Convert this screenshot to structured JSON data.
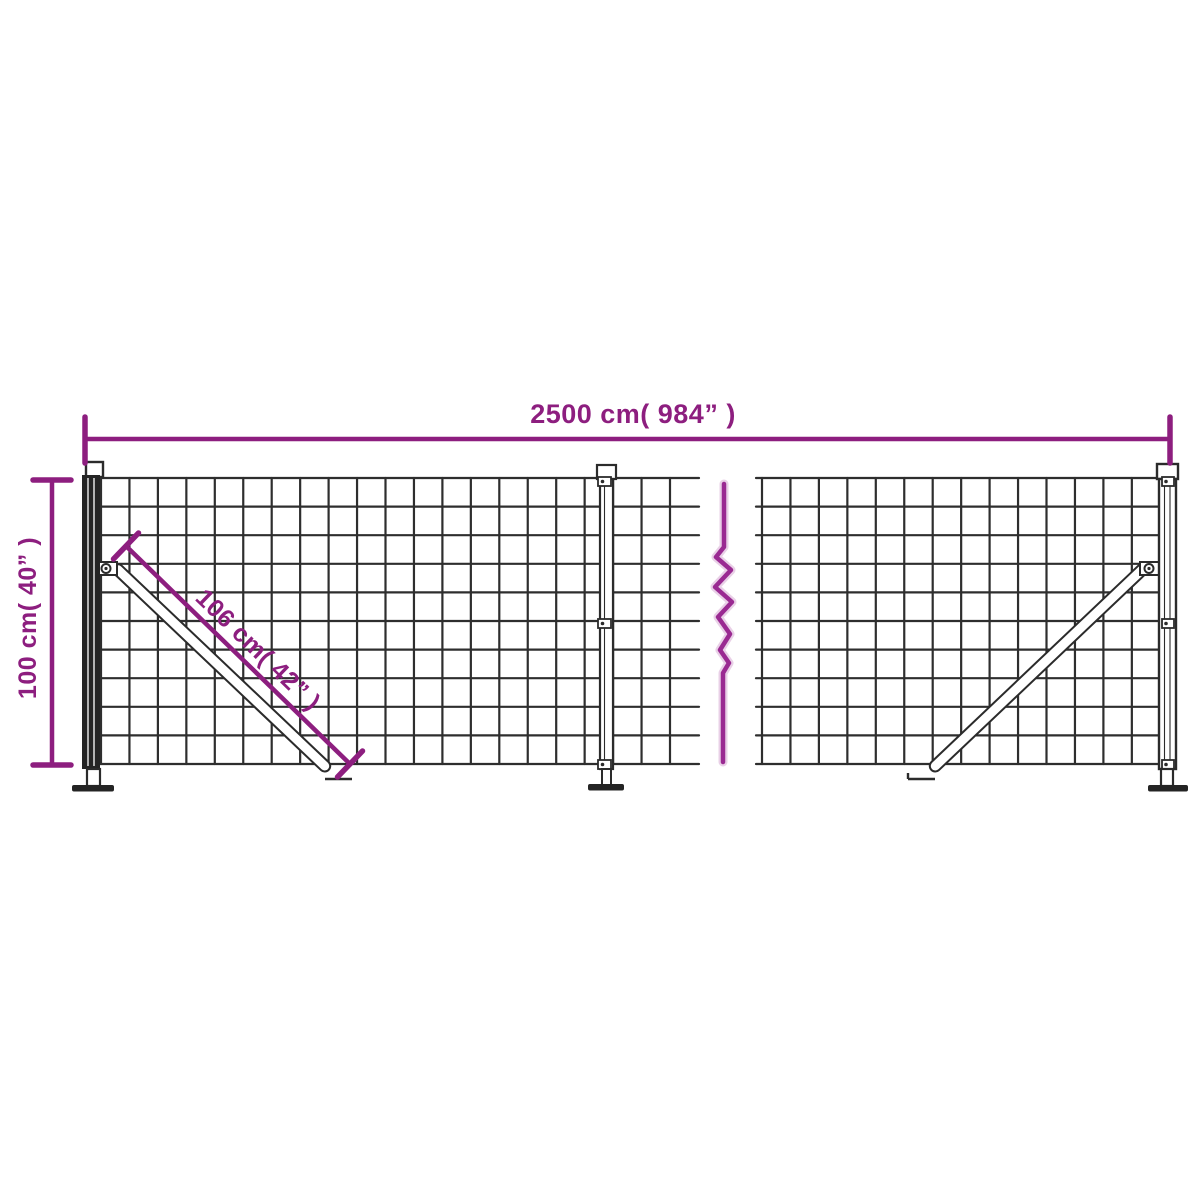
{
  "page": {
    "background": "#ffffff"
  },
  "diagram": {
    "labels": {
      "total_width": "2500 cm( 984” )",
      "height": "100 cm( 40” )",
      "brace_length": "106 cm( 42” )"
    },
    "colors": {
      "dimension": "#8d1e7f",
      "break_line": "#9a2a92",
      "wire": "#2e2e2e",
      "post": "#242424"
    }
  }
}
